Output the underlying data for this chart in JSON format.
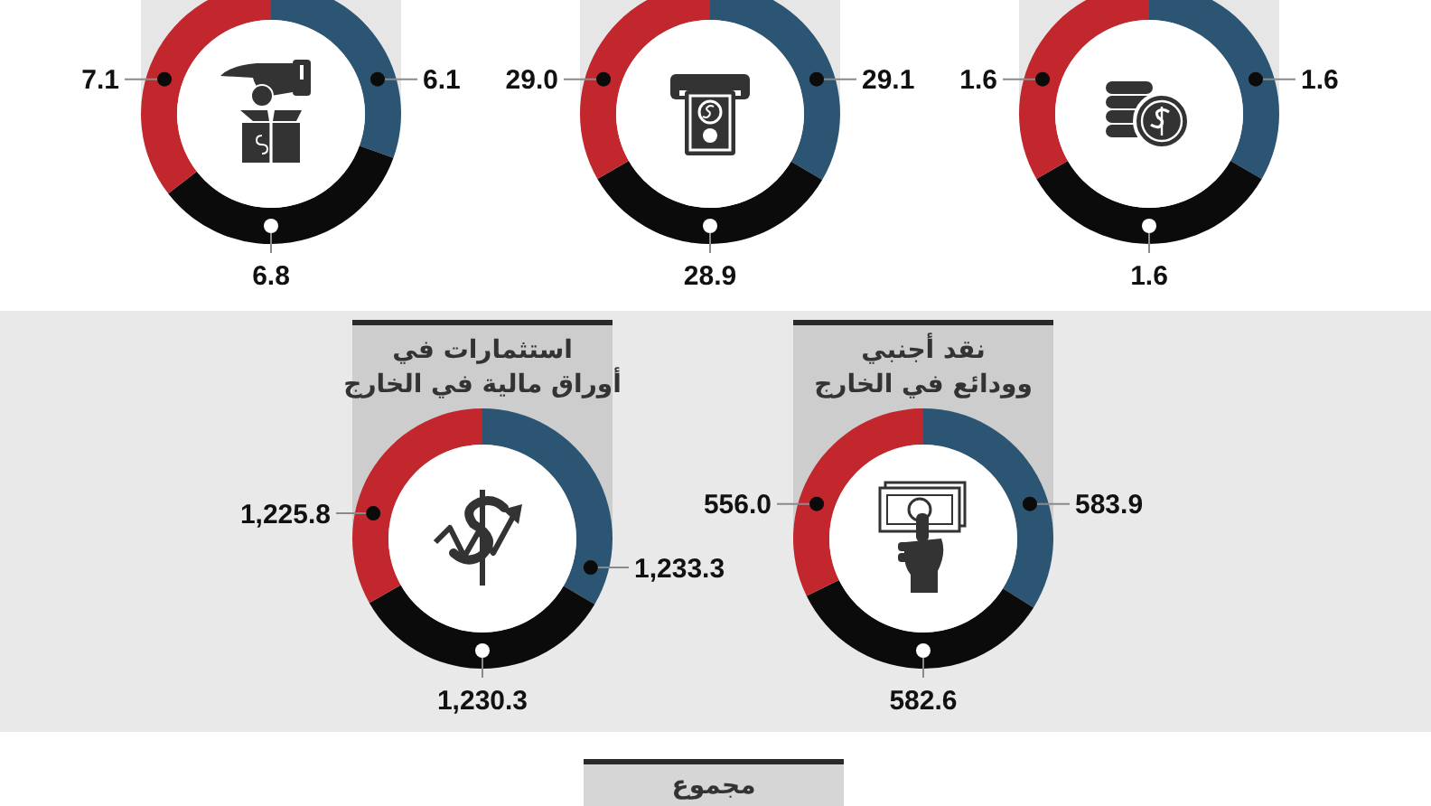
{
  "chart_data": [
    {
      "type": "donut",
      "categories": [
        null,
        null,
        null
      ],
      "values": [
        6.1,
        6.8,
        7.1
      ],
      "colors": [
        "#2b5572",
        "#0b0b0b",
        "#c1272d"
      ],
      "value_labels": [
        "6.1",
        "6.8",
        "7.1"
      ]
    },
    {
      "type": "donut",
      "categories": [
        null,
        null,
        null
      ],
      "values": [
        29.1,
        28.9,
        29.0
      ],
      "colors": [
        "#2b5572",
        "#0b0b0b",
        "#c1272d"
      ],
      "value_labels": [
        "29.1",
        "28.9",
        "29.0"
      ]
    },
    {
      "type": "donut",
      "categories": [
        null,
        null,
        null
      ],
      "values": [
        1.6,
        1.6,
        1.6
      ],
      "colors": [
        "#2b5572",
        "#0b0b0b",
        "#c1272d"
      ],
      "value_labels": [
        "1.6",
        "1.6",
        "1.6"
      ]
    },
    {
      "type": "donut",
      "title": "استثمارات في\nأوراق مالية في الخارج",
      "categories": [
        null,
        null,
        null
      ],
      "values": [
        1233.3,
        1230.3,
        1225.8
      ],
      "colors": [
        "#2b5572",
        "#0b0b0b",
        "#c1272d"
      ],
      "value_labels": [
        "1,233.3",
        "1,230.3",
        "1,225.8"
      ]
    },
    {
      "type": "donut",
      "title": "نقد أجنبي\nوودائع في الخارج",
      "categories": [
        null,
        null,
        null
      ],
      "values": [
        583.9,
        582.6,
        556.0
      ],
      "colors": [
        "#2b5572",
        "#0b0b0b",
        "#c1272d"
      ],
      "value_labels": [
        "583.9",
        "582.6",
        "556.0"
      ]
    },
    {
      "type": "other",
      "title": "مجموع"
    }
  ]
}
